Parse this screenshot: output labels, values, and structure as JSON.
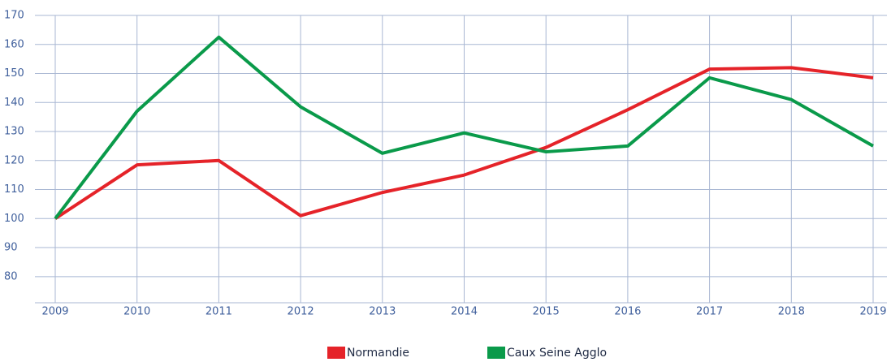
{
  "chart_data": {
    "type": "line",
    "x": [
      2009,
      2010,
      2011,
      2012,
      2013,
      2014,
      2015,
      2016,
      2017,
      2018,
      2019
    ],
    "xlim": [
      2009,
      2019
    ],
    "xticks": [
      2009,
      2010,
      2011,
      2012,
      2013,
      2014,
      2015,
      2016,
      2017,
      2018,
      2019
    ],
    "ylim": [
      71,
      170
    ],
    "yticks": [
      80,
      90,
      100,
      110,
      120,
      130,
      140,
      150,
      160,
      170
    ],
    "grid": true,
    "legend": "bottom",
    "series": [
      {
        "name": "Normandie",
        "color": "#e52329",
        "values": [
          100,
          118.5,
          120,
          101,
          109,
          115,
          124.5,
          137.5,
          151.5,
          152,
          148.5
        ]
      },
      {
        "name": "Caux Seine Agglo",
        "color": "#0a9a4a",
        "values": [
          100,
          137,
          162.5,
          138.5,
          122.5,
          129.5,
          123,
          125,
          148.5,
          141,
          125
        ]
      }
    ]
  }
}
